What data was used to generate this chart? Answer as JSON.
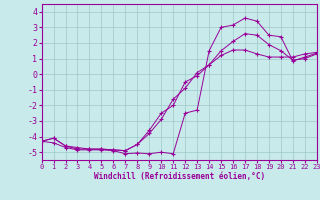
{
  "xlabel": "Windchill (Refroidissement éolien,°C)",
  "xlim": [
    0,
    23
  ],
  "ylim": [
    -5.5,
    4.5
  ],
  "xticks": [
    0,
    1,
    2,
    3,
    4,
    5,
    6,
    7,
    8,
    9,
    10,
    11,
    12,
    13,
    14,
    15,
    16,
    17,
    18,
    19,
    20,
    21,
    22,
    23
  ],
  "yticks": [
    -5,
    -4,
    -3,
    -2,
    -1,
    0,
    1,
    2,
    3,
    4
  ],
  "background_color": "#c8eaea",
  "line_color": "#990099",
  "grid_color": "#9dc8c8",
  "line1_x": [
    0,
    1,
    2,
    3,
    4,
    5,
    6,
    7,
    8,
    9,
    10,
    11,
    12,
    13,
    14,
    15,
    16,
    17,
    18,
    19,
    20,
    21,
    22,
    23
  ],
  "line1_y": [
    -4.3,
    -4.1,
    -4.6,
    -4.7,
    -4.8,
    -4.8,
    -4.85,
    -4.9,
    -4.5,
    -3.6,
    -2.5,
    -2.0,
    -0.5,
    -0.1,
    0.6,
    1.2,
    1.55,
    1.55,
    1.3,
    1.1,
    1.1,
    1.1,
    1.3,
    1.4
  ],
  "line2_x": [
    0,
    1,
    2,
    3,
    4,
    5,
    6,
    7,
    8,
    9,
    10,
    11,
    12,
    13,
    14,
    15,
    16,
    17,
    18,
    19,
    20,
    21,
    22,
    23
  ],
  "line2_y": [
    -4.3,
    -4.4,
    -4.7,
    -4.85,
    -4.85,
    -4.85,
    -4.9,
    -5.1,
    -5.05,
    -5.1,
    -5.0,
    -5.1,
    -2.5,
    -2.3,
    1.5,
    3.0,
    3.15,
    3.6,
    3.4,
    2.5,
    2.4,
    0.85,
    1.1,
    1.35
  ],
  "line3_x": [
    0,
    1,
    2,
    3,
    4,
    5,
    6,
    7,
    8,
    9,
    10,
    11,
    12,
    13,
    14,
    15,
    16,
    17,
    18,
    19,
    20,
    21,
    22,
    23
  ],
  "line3_y": [
    -4.3,
    -4.1,
    -4.6,
    -4.8,
    -4.8,
    -4.8,
    -4.85,
    -4.9,
    -4.5,
    -3.8,
    -2.9,
    -1.6,
    -0.9,
    0.1,
    0.6,
    1.5,
    2.1,
    2.6,
    2.5,
    1.9,
    1.5,
    0.9,
    1.0,
    1.3
  ]
}
